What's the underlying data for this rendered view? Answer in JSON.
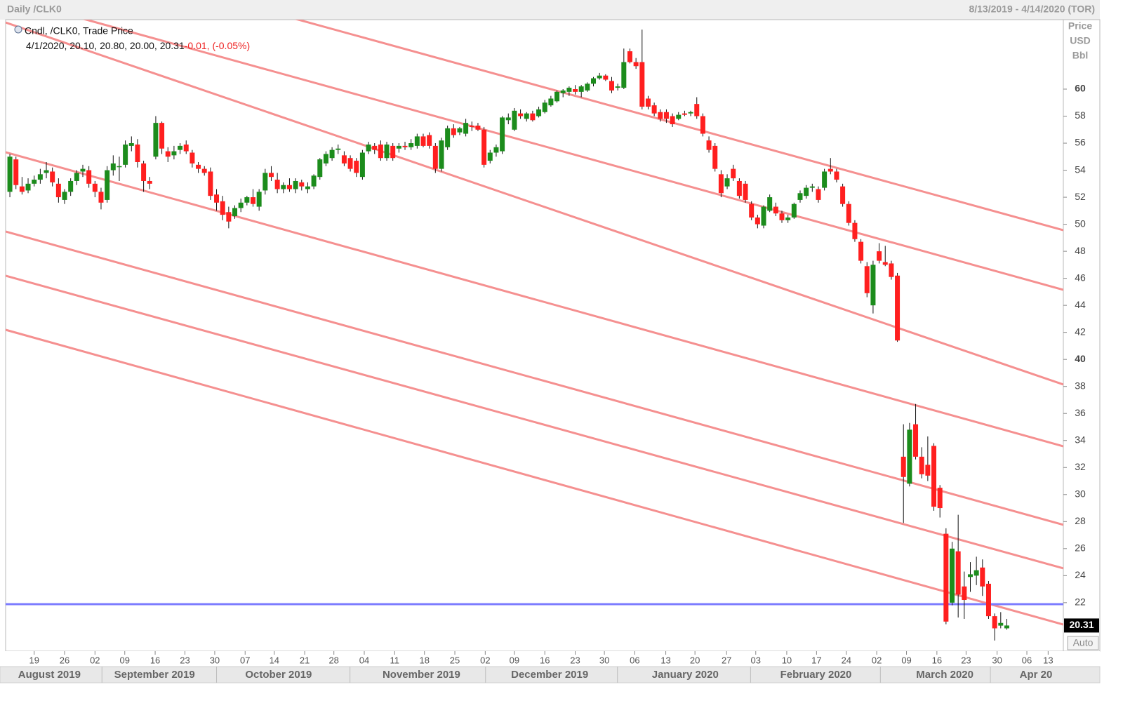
{
  "header": {
    "left": "Daily /CLK0",
    "right": "8/13/2019 - 4/14/2020 (TOR)"
  },
  "chart_data": {
    "type": "candlestick",
    "legend_title": "Cndl, /CLK0, Trade Price",
    "legend_ohlc": "4/1/2020, 20.10, 20.80, 20.00, 20.31",
    "legend_change": "-0.01, (-0.05%)",
    "axis_units": [
      "Price",
      "USD",
      "Bbl"
    ],
    "last_price": 20.31,
    "auto_button": "Auto",
    "up_color": "#1c8c1c",
    "down_color": "#ff1f1f",
    "ylim": [
      18.41,
      65.14
    ],
    "yticks": [
      22,
      24,
      26,
      28,
      30,
      32,
      34,
      36,
      38,
      40,
      42,
      44,
      46,
      48,
      50,
      52,
      54,
      56,
      58,
      60
    ],
    "xlim": [
      -0.7,
      173.3
    ],
    "xticks": [
      {
        "value": 4.0,
        "label": "19"
      },
      {
        "value": 9.0,
        "label": "26"
      },
      {
        "value": 14.0,
        "label": "02"
      },
      {
        "value": 18.9,
        "label": "09"
      },
      {
        "value": 23.9,
        "label": "16"
      },
      {
        "value": 28.8,
        "label": "23"
      },
      {
        "value": 33.7,
        "label": "30"
      },
      {
        "value": 38.7,
        "label": "07"
      },
      {
        "value": 43.5,
        "label": "14"
      },
      {
        "value": 48.5,
        "label": "21"
      },
      {
        "value": 53.3,
        "label": "28"
      },
      {
        "value": 58.3,
        "label": "04"
      },
      {
        "value": 63.3,
        "label": "11"
      },
      {
        "value": 68.2,
        "label": "18"
      },
      {
        "value": 73.2,
        "label": "25"
      },
      {
        "value": 78.2,
        "label": "02"
      },
      {
        "value": 83.0,
        "label": "09"
      },
      {
        "value": 88.0,
        "label": "16"
      },
      {
        "value": 93.0,
        "label": "23"
      },
      {
        "value": 97.8,
        "label": "30"
      },
      {
        "value": 102.8,
        "label": "06"
      },
      {
        "value": 107.9,
        "label": "13"
      },
      {
        "value": 112.7,
        "label": "20"
      },
      {
        "value": 117.9,
        "label": "27"
      },
      {
        "value": 122.7,
        "label": "03"
      },
      {
        "value": 127.8,
        "label": "10"
      },
      {
        "value": 132.7,
        "label": "17"
      },
      {
        "value": 137.6,
        "label": "24"
      },
      {
        "value": 142.6,
        "label": "02"
      },
      {
        "value": 147.5,
        "label": "09"
      },
      {
        "value": 152.5,
        "label": "16"
      },
      {
        "value": 157.3,
        "label": "23"
      },
      {
        "value": 162.4,
        "label": "30"
      },
      {
        "value": 167.3,
        "label": "06"
      },
      {
        "value": 170.8,
        "label": "13"
      }
    ],
    "months": [
      {
        "value": 6.5,
        "label": "August 2019"
      },
      {
        "value": 23.8,
        "label": "September 2019"
      },
      {
        "value": 44.2,
        "label": "October 2019"
      },
      {
        "value": 67.7,
        "label": "November 2019"
      },
      {
        "value": 88.8,
        "label": "December 2019"
      },
      {
        "value": 111.1,
        "label": "January 2020"
      },
      {
        "value": 132.6,
        "label": "February 2020"
      },
      {
        "value": 153.8,
        "label": "March 2020"
      },
      {
        "value": 168.8,
        "label": "Apr 20"
      }
    ],
    "trendline_color": "#f59090",
    "trendlines": [
      [
        71.1,
        49.56
      ],
      [
        66.79,
        45.15
      ],
      [
        64.93,
        38.14
      ],
      [
        55.33,
        33.57
      ],
      [
        49.46,
        27.76
      ],
      [
        46.19,
        24.54
      ],
      [
        42.19,
        20.38
      ]
    ],
    "hline_color": "#7c7cff",
    "hline": 21.89,
    "ohlc": [
      [
        52.4,
        55.2,
        52.0,
        55.0
      ],
      [
        54.8,
        55.0,
        52.6,
        52.9
      ],
      [
        52.8,
        53.5,
        52.2,
        52.4
      ],
      [
        52.5,
        53.4,
        52.3,
        53.0
      ],
      [
        53.0,
        53.6,
        52.8,
        53.3
      ],
      [
        53.3,
        54.1,
        53.0,
        53.7
      ],
      [
        53.8,
        54.6,
        53.4,
        54.0
      ],
      [
        53.9,
        54.2,
        52.8,
        53.1
      ],
      [
        53.0,
        53.4,
        51.6,
        52.0
      ],
      [
        51.8,
        52.6,
        51.5,
        52.4
      ],
      [
        52.4,
        53.4,
        52.1,
        53.2
      ],
      [
        53.2,
        54.0,
        52.9,
        53.8
      ],
      [
        53.9,
        54.4,
        53.5,
        54.1
      ],
      [
        54.0,
        54.3,
        52.7,
        53.0
      ],
      [
        53.0,
        53.2,
        52.0,
        52.4
      ],
      [
        52.4,
        52.7,
        51.1,
        51.6
      ],
      [
        51.8,
        54.3,
        51.6,
        54.0
      ],
      [
        54.0,
        55.1,
        53.6,
        54.5
      ],
      [
        54.3,
        55.0,
        53.2,
        54.3
      ],
      [
        54.4,
        56.2,
        54.2,
        55.9
      ],
      [
        55.8,
        56.5,
        55.4,
        56.0
      ],
      [
        55.9,
        56.3,
        54.2,
        54.6
      ],
      [
        54.5,
        54.7,
        52.4,
        53.2
      ],
      [
        53.2,
        53.5,
        52.6,
        53.0
      ],
      [
        55.0,
        58.0,
        54.8,
        57.5
      ],
      [
        57.5,
        57.6,
        55.2,
        55.6
      ],
      [
        55.4,
        55.7,
        54.6,
        55.0
      ],
      [
        55.1,
        55.8,
        54.8,
        55.4
      ],
      [
        55.5,
        56.0,
        55.2,
        55.8
      ],
      [
        55.9,
        56.2,
        55.2,
        55.4
      ],
      [
        55.3,
        55.5,
        54.2,
        54.5
      ],
      [
        54.4,
        54.6,
        53.8,
        54.1
      ],
      [
        54.1,
        54.3,
        53.6,
        53.8
      ],
      [
        53.9,
        54.2,
        51.8,
        52.1
      ],
      [
        52.2,
        52.6,
        51.0,
        51.6
      ],
      [
        51.7,
        52.1,
        50.3,
        50.7
      ],
      [
        50.9,
        51.3,
        49.7,
        50.2
      ],
      [
        50.6,
        51.4,
        50.4,
        51.2
      ],
      [
        51.2,
        51.9,
        50.9,
        51.6
      ],
      [
        51.6,
        52.1,
        51.4,
        52.0
      ],
      [
        52.0,
        52.6,
        51.3,
        51.5
      ],
      [
        51.3,
        52.6,
        51.0,
        52.4
      ],
      [
        52.5,
        54.1,
        52.2,
        53.8
      ],
      [
        53.8,
        54.3,
        53.2,
        53.5
      ],
      [
        53.3,
        53.8,
        52.3,
        52.6
      ],
      [
        52.6,
        53.1,
        52.3,
        52.9
      ],
      [
        52.9,
        53.4,
        52.4,
        52.6
      ],
      [
        52.6,
        53.4,
        52.3,
        53.2
      ],
      [
        53.1,
        53.3,
        52.5,
        52.8
      ],
      [
        52.6,
        53.1,
        52.3,
        52.8
      ],
      [
        52.8,
        53.7,
        52.6,
        53.6
      ],
      [
        53.5,
        54.9,
        53.3,
        54.8
      ],
      [
        54.5,
        55.4,
        54.3,
        55.2
      ],
      [
        54.9,
        55.7,
        54.7,
        55.5
      ],
      [
        55.5,
        55.9,
        55.2,
        55.6
      ],
      [
        55.1,
        55.4,
        54.3,
        54.5
      ],
      [
        54.9,
        55.1,
        53.9,
        54.1
      ],
      [
        54.7,
        54.9,
        53.5,
        53.8
      ],
      [
        53.5,
        55.5,
        53.3,
        55.3
      ],
      [
        55.4,
        56.1,
        55.2,
        55.9
      ],
      [
        55.8,
        56.0,
        55.2,
        55.5
      ],
      [
        55.9,
        56.2,
        54.7,
        54.9
      ],
      [
        54.9,
        56.1,
        54.7,
        55.9
      ],
      [
        55.8,
        56.0,
        54.7,
        54.9
      ],
      [
        55.6,
        56.0,
        55.3,
        55.8
      ],
      [
        55.8,
        56.1,
        55.5,
        55.7
      ],
      [
        55.7,
        56.3,
        55.5,
        56.0
      ],
      [
        55.8,
        56.7,
        55.6,
        56.5
      ],
      [
        56.5,
        56.7,
        55.7,
        55.8
      ],
      [
        56.6,
        56.8,
        55.6,
        55.8
      ],
      [
        55.8,
        56.0,
        53.8,
        54.1
      ],
      [
        54.1,
        56.4,
        53.9,
        56.2
      ],
      [
        55.7,
        57.3,
        55.5,
        57.1
      ],
      [
        57.1,
        57.4,
        56.4,
        56.6
      ],
      [
        56.8,
        57.2,
        56.6,
        57.1
      ],
      [
        56.7,
        57.8,
        56.5,
        57.5
      ],
      [
        57.3,
        57.6,
        56.9,
        57.2
      ],
      [
        57.3,
        57.5,
        56.9,
        57.0
      ],
      [
        57.0,
        57.2,
        54.2,
        54.4
      ],
      [
        54.7,
        55.5,
        54.5,
        55.3
      ],
      [
        55.3,
        55.9,
        55.0,
        55.7
      ],
      [
        55.4,
        58.0,
        55.2,
        57.9
      ],
      [
        57.7,
        58.2,
        57.4,
        57.9
      ],
      [
        57.0,
        58.6,
        56.9,
        58.4
      ],
      [
        58.2,
        58.5,
        57.8,
        58.0
      ],
      [
        57.8,
        58.3,
        57.6,
        58.2
      ],
      [
        58.2,
        58.4,
        57.6,
        57.7
      ],
      [
        58.0,
        58.7,
        57.9,
        58.5
      ],
      [
        58.3,
        59.2,
        58.2,
        59.0
      ],
      [
        58.8,
        59.5,
        58.7,
        59.3
      ],
      [
        59.1,
        59.9,
        59.0,
        59.8
      ],
      [
        59.7,
        60.0,
        59.4,
        59.9
      ],
      [
        59.8,
        60.2,
        59.5,
        60.1
      ],
      [
        60.0,
        60.3,
        59.6,
        59.8
      ],
      [
        59.8,
        60.3,
        59.4,
        60.2
      ],
      [
        59.9,
        60.5,
        59.8,
        60.4
      ],
      [
        60.4,
        60.9,
        60.2,
        60.8
      ],
      [
        60.8,
        61.2,
        60.7,
        61.0
      ],
      [
        61.0,
        61.1,
        60.6,
        60.7
      ],
      [
        60.6,
        60.9,
        59.7,
        59.9
      ],
      [
        60.1,
        60.4,
        59.9,
        60.2
      ],
      [
        60.1,
        63.0,
        60.0,
        62.0
      ],
      [
        62.8,
        63.0,
        61.9,
        62.0
      ],
      [
        62.0,
        62.3,
        61.5,
        61.7
      ],
      [
        62.0,
        64.4,
        58.5,
        58.7
      ],
      [
        59.3,
        59.5,
        58.5,
        58.7
      ],
      [
        58.8,
        59.0,
        58.0,
        58.2
      ],
      [
        58.3,
        58.5,
        57.6,
        57.8
      ],
      [
        58.3,
        58.5,
        57.5,
        57.8
      ],
      [
        58.0,
        58.2,
        57.2,
        57.4
      ],
      [
        57.8,
        58.3,
        57.7,
        58.1
      ],
      [
        58.2,
        58.4,
        58.0,
        58.1
      ],
      [
        58.2,
        58.4,
        58.0,
        58.3
      ],
      [
        58.9,
        59.4,
        57.8,
        58.0
      ],
      [
        58.0,
        58.2,
        56.5,
        56.7
      ],
      [
        56.2,
        56.5,
        55.3,
        55.5
      ],
      [
        55.8,
        56.0,
        53.9,
        54.1
      ],
      [
        53.7,
        54.0,
        52.0,
        52.3
      ],
      [
        52.8,
        53.7,
        52.6,
        53.4
      ],
      [
        54.1,
        54.4,
        53.2,
        53.4
      ],
      [
        53.2,
        53.4,
        51.9,
        52.1
      ],
      [
        53.0,
        53.2,
        51.6,
        51.8
      ],
      [
        51.5,
        51.7,
        50.3,
        50.5
      ],
      [
        50.5,
        50.7,
        49.7,
        50.0
      ],
      [
        49.9,
        51.4,
        49.7,
        51.3
      ],
      [
        51.0,
        52.2,
        50.9,
        52.0
      ],
      [
        51.3,
        51.6,
        50.6,
        50.8
      ],
      [
        50.8,
        51.0,
        50.1,
        50.3
      ],
      [
        50.3,
        50.7,
        50.1,
        50.5
      ],
      [
        50.5,
        51.6,
        50.4,
        51.5
      ],
      [
        51.8,
        52.5,
        51.6,
        52.3
      ],
      [
        52.1,
        52.9,
        51.9,
        52.7
      ],
      [
        52.7,
        53.0,
        52.4,
        52.8
      ],
      [
        52.6,
        52.8,
        51.6,
        51.8
      ],
      [
        52.7,
        54.1,
        52.5,
        53.9
      ],
      [
        54.1,
        54.9,
        53.7,
        53.9
      ],
      [
        53.9,
        54.1,
        53.1,
        53.3
      ],
      [
        52.8,
        53.0,
        51.3,
        51.5
      ],
      [
        51.5,
        51.7,
        49.9,
        50.1
      ],
      [
        50.1,
        50.3,
        48.7,
        48.9
      ],
      [
        48.7,
        48.9,
        47.1,
        47.3
      ],
      [
        46.9,
        47.2,
        44.6,
        44.9
      ],
      [
        44.0,
        47.3,
        43.4,
        47.0
      ],
      [
        48.0,
        48.6,
        47.1,
        47.3
      ],
      [
        47.2,
        48.4,
        46.9,
        47.0
      ],
      [
        47.1,
        47.3,
        45.9,
        46.1
      ],
      [
        46.2,
        46.4,
        41.3,
        41.4
      ],
      [
        32.8,
        35.2,
        27.9,
        31.3
      ],
      [
        30.8,
        35.3,
        30.6,
        34.8
      ],
      [
        35.2,
        36.7,
        32.6,
        32.8
      ],
      [
        32.8,
        33.5,
        31.2,
        31.5
      ],
      [
        32.2,
        34.3,
        31.0,
        31.4
      ],
      [
        33.6,
        33.8,
        28.8,
        29.1
      ],
      [
        30.5,
        30.7,
        28.3,
        29.0
      ],
      [
        27.1,
        27.5,
        20.4,
        20.6
      ],
      [
        22.0,
        26.5,
        21.8,
        26.0
      ],
      [
        25.8,
        28.5,
        20.9,
        22.6
      ],
      [
        23.2,
        24.3,
        20.8,
        22.2
      ],
      [
        23.9,
        25.0,
        22.8,
        24.1
      ],
      [
        24.0,
        25.4,
        23.3,
        24.4
      ],
      [
        24.6,
        25.2,
        22.5,
        23.2
      ],
      [
        23.4,
        23.6,
        20.8,
        21.0
      ],
      [
        21.0,
        21.2,
        19.2,
        20.1
      ],
      [
        20.3,
        21.3,
        20.1,
        20.5
      ],
      [
        20.1,
        20.8,
        20.0,
        20.31
      ]
    ]
  }
}
